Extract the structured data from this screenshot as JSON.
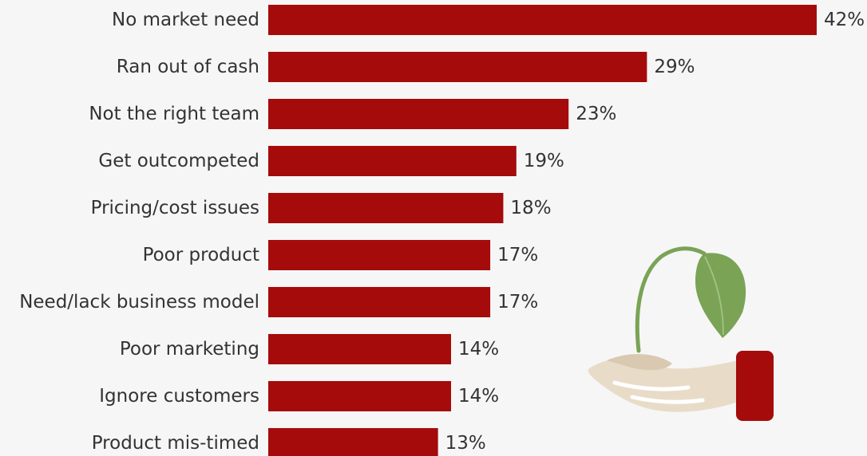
{
  "chart_data": {
    "type": "bar",
    "orientation": "horizontal",
    "categories": [
      "No market need",
      "Ran out of cash",
      "Not the right team",
      "Get outcompeted",
      "Pricing/cost issues",
      "Poor product",
      "Need/lack business model",
      "Poor marketing",
      "Ignore customers",
      "Product mis-timed"
    ],
    "values": [
      42,
      29,
      23,
      19,
      18,
      17,
      17,
      14,
      14,
      13
    ],
    "value_labels": [
      "42%",
      "29%",
      "23%",
      "19%",
      "18%",
      "17%",
      "17%",
      "14%",
      "14%",
      "13%"
    ],
    "unit": "%",
    "bar_color": "#a50b0b",
    "xlim": [
      0,
      42
    ],
    "grid": false,
    "legend": "none"
  },
  "illustration": {
    "icon": "hand-holding-sprout-icon",
    "leaf_color": "#7aa356",
    "hand_color": "#e8dcc8",
    "cuff_color": "#a50b0b"
  }
}
